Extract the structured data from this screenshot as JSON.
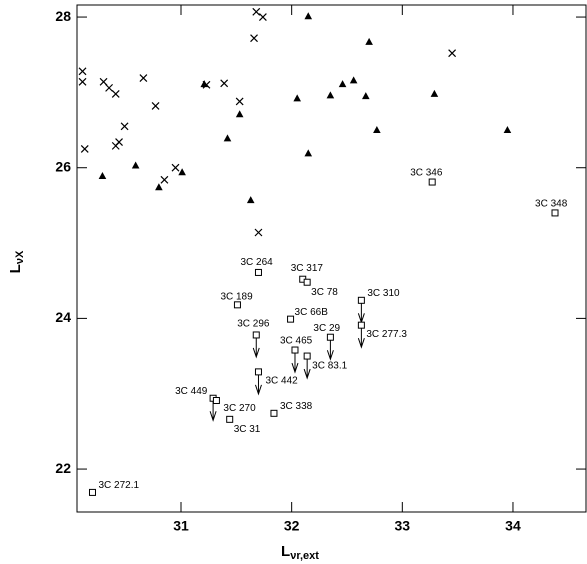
{
  "chart_data": {
    "type": "scatter",
    "x_label": "L",
    "x_label_sub": "νr,ext",
    "y_label": "L",
    "y_label_sub": "νX",
    "xlim": [
      30.06,
      34.66
    ],
    "ylim": [
      21.43,
      28.16
    ],
    "xticks": [
      31,
      32,
      33,
      34
    ],
    "yticks": [
      22,
      24,
      26,
      28
    ],
    "series": [
      {
        "marker": "cross",
        "color": "#000000",
        "x": [
          30.11,
          30.11,
          30.13,
          30.3,
          30.35,
          30.41,
          30.49,
          30.41,
          30.44,
          30.66,
          30.77,
          30.85,
          30.95,
          31.23,
          31.39,
          31.53,
          31.66,
          31.68,
          31.74,
          31.7,
          33.45
        ],
        "y": [
          27.28,
          27.14,
          26.25,
          27.14,
          27.06,
          26.98,
          26.55,
          26.29,
          26.34,
          27.19,
          26.82,
          25.84,
          26.0,
          27.1,
          27.12,
          26.88,
          27.72,
          28.07,
          28.0,
          25.14,
          27.52
        ]
      },
      {
        "marker": "triangle",
        "color": "#000000",
        "x": [
          30.29,
          30.59,
          30.8,
          31.01,
          31.21,
          31.42,
          31.53,
          31.63,
          32.15,
          32.05,
          32.15,
          32.35,
          32.46,
          32.56,
          32.67,
          32.7,
          32.77,
          33.29,
          33.95
        ],
        "y": [
          25.89,
          26.03,
          25.74,
          25.94,
          27.11,
          26.39,
          26.71,
          25.57,
          28.01,
          26.92,
          26.19,
          26.96,
          27.11,
          27.16,
          26.95,
          27.67,
          26.5,
          26.98,
          26.5
        ]
      },
      {
        "marker": "square",
        "color": "#000000",
        "labels": [
          "3C 346",
          "3C 348",
          "3C 264",
          "3C 317",
          "3C 78",
          "3C 189",
          "3C 310",
          "3C 66B",
          "3C 296",
          "3C 29",
          "3C 277.3",
          "3C 465",
          "3C 83.1",
          "3C 442",
          "3C 449",
          "3C 270",
          "3C 31",
          "3C 338",
          "3C 272.1"
        ],
        "x": [
          33.27,
          34.38,
          31.7,
          32.1,
          32.14,
          31.51,
          32.63,
          31.99,
          31.68,
          32.35,
          32.63,
          32.03,
          32.14,
          31.7,
          31.29,
          31.32,
          31.44,
          31.84,
          30.2
        ],
        "y": [
          25.81,
          25.4,
          24.61,
          24.52,
          24.48,
          24.18,
          24.24,
          23.99,
          23.78,
          23.75,
          23.91,
          23.58,
          23.5,
          23.29,
          22.94,
          22.91,
          22.66,
          22.74,
          21.69
        ],
        "upper_limit": [
          false,
          false,
          false,
          false,
          false,
          false,
          true,
          false,
          true,
          true,
          true,
          true,
          true,
          true,
          true,
          false,
          false,
          false,
          false
        ]
      }
    ]
  }
}
